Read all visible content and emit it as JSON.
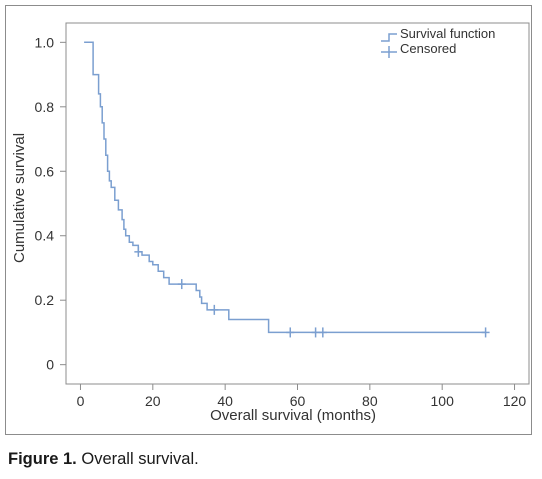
{
  "caption": {
    "label": "Figure 1.",
    "text": "Overall survival."
  },
  "chart_data": {
    "type": "line",
    "xlabel": "Overall survival (months)",
    "ylabel": "Cumulative survival",
    "xlim": [
      -4,
      124
    ],
    "ylim": [
      -0.06,
      1.06
    ],
    "x_ticks": [
      0,
      20,
      40,
      60,
      80,
      100,
      120
    ],
    "y_ticks": [
      0,
      0.2,
      0.4,
      0.6,
      0.8,
      1.0
    ],
    "y_tick_labels": [
      "0",
      "0.2",
      "0.4",
      "0.6",
      "0.8",
      "1.0"
    ],
    "grid": false,
    "legend_position": "top-right",
    "legend": [
      "Survival function",
      "Censored"
    ],
    "line_color": "#7b9fd0",
    "series": [
      {
        "name": "Survival function",
        "type": "step",
        "points": [
          [
            1,
            1.0
          ],
          [
            3,
            1.0
          ],
          [
            3.5,
            0.9
          ],
          [
            4.5,
            0.9
          ],
          [
            5,
            0.84
          ],
          [
            5.5,
            0.8
          ],
          [
            6,
            0.75
          ],
          [
            6.5,
            0.7
          ],
          [
            7,
            0.65
          ],
          [
            7.5,
            0.6
          ],
          [
            8,
            0.57
          ],
          [
            8.5,
            0.55
          ],
          [
            9.5,
            0.51
          ],
          [
            10.5,
            0.48
          ],
          [
            11.5,
            0.45
          ],
          [
            12,
            0.42
          ],
          [
            12.5,
            0.4
          ],
          [
            13.5,
            0.38
          ],
          [
            14.5,
            0.37
          ],
          [
            16,
            0.35
          ],
          [
            17,
            0.34
          ],
          [
            19,
            0.32
          ],
          [
            20,
            0.31
          ],
          [
            21.5,
            0.29
          ],
          [
            23,
            0.27
          ],
          [
            24.5,
            0.25
          ],
          [
            26,
            0.25
          ],
          [
            28,
            0.25
          ],
          [
            31,
            0.25
          ],
          [
            32,
            0.23
          ],
          [
            33,
            0.21
          ],
          [
            33.5,
            0.19
          ],
          [
            35,
            0.17
          ],
          [
            37,
            0.17
          ],
          [
            38,
            0.17
          ],
          [
            41,
            0.14
          ],
          [
            45,
            0.14
          ],
          [
            51,
            0.14
          ],
          [
            52,
            0.1
          ],
          [
            57,
            0.1
          ],
          [
            60,
            0.1
          ],
          [
            65,
            0.1
          ],
          [
            67,
            0.1
          ],
          [
            112,
            0.1
          ]
        ]
      },
      {
        "name": "Censored",
        "type": "marker",
        "points": [
          [
            16,
            0.35
          ],
          [
            28,
            0.25
          ],
          [
            37,
            0.17
          ],
          [
            58,
            0.1
          ],
          [
            65,
            0.1
          ],
          [
            67,
            0.1
          ],
          [
            112,
            0.1
          ]
        ]
      }
    ]
  }
}
